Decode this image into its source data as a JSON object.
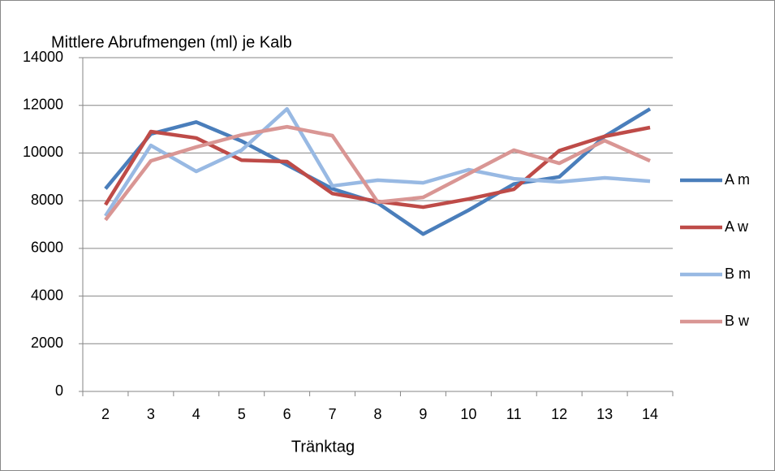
{
  "chart_data": {
    "type": "line",
    "title": "Mittlere Abrufmengen (ml) je Kalb",
    "x_label": "Tränktag",
    "categories": [
      "2",
      "3",
      "4",
      "5",
      "6",
      "7",
      "8",
      "9",
      "10",
      "11",
      "12",
      "13",
      "14"
    ],
    "series": [
      {
        "name": "A m",
        "color": "#4a7ebb",
        "values": [
          8500,
          10800,
          11300,
          10500,
          9500,
          8500,
          7900,
          6600,
          7600,
          8700,
          9000,
          10700,
          11850
        ]
      },
      {
        "name": "A w",
        "color": "#be4b48",
        "values": [
          7830,
          10900,
          10630,
          9700,
          9640,
          8300,
          7970,
          7730,
          8070,
          8480,
          10100,
          10700,
          11070
        ]
      },
      {
        "name": "B m",
        "color": "#98b9e3",
        "values": [
          7360,
          10320,
          9230,
          10120,
          11850,
          8620,
          8860,
          8750,
          9300,
          8920,
          8790,
          8960,
          8820
        ]
      },
      {
        "name": "B w",
        "color": "#d99694",
        "values": [
          7190,
          9670,
          10250,
          10760,
          11100,
          10730,
          7940,
          8140,
          9130,
          10120,
          9570,
          10520,
          9670
        ]
      }
    ],
    "ylim": [
      0,
      14000
    ],
    "yticks": [
      0,
      2000,
      4000,
      6000,
      8000,
      10000,
      12000,
      14000
    ],
    "grid": true,
    "legend": "right"
  }
}
